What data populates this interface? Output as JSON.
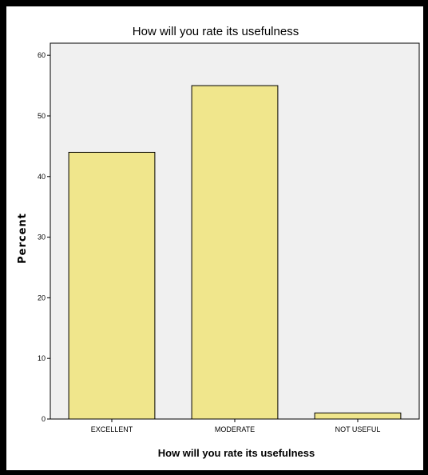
{
  "chart_data": {
    "type": "bar",
    "title": "How will you rate its usefulness",
    "xlabel": "How will you rate its usefulness",
    "ylabel": "Percent",
    "categories": [
      "EXCELLENT",
      "MODERATE",
      "NOT USEFUL"
    ],
    "values": [
      44,
      55,
      1
    ],
    "ylim": [
      0,
      62
    ],
    "yticks": [
      0,
      10,
      20,
      30,
      40,
      50,
      60
    ],
    "grid": false,
    "colors": {
      "bar_fill": "#f0e68c",
      "bar_stroke": "#000000",
      "plot_background": "#f0f0f0"
    }
  }
}
